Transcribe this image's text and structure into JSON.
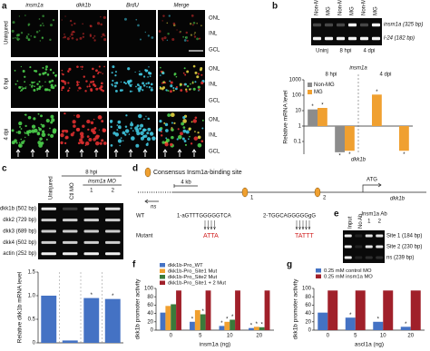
{
  "figure": {
    "a": {
      "label": "a",
      "columns": [
        "insm1a",
        "dkk1b",
        "BrdU",
        "Merge"
      ],
      "rows": [
        "Uninjured",
        "6 hpi",
        "4 dpi"
      ],
      "layers": [
        "ONL",
        "INL",
        "GCL"
      ]
    },
    "b": {
      "label": "b",
      "lanes": [
        "Non-MG",
        "MG",
        "Non-MG",
        "MG",
        "Non-MG",
        "MG"
      ],
      "groups": [
        "Uninj",
        "8 hpi",
        "4 dpi"
      ],
      "bands": [
        "insm1a (325 bp)",
        "l-24 (182 bp)"
      ]
    },
    "c": {
      "label": "c",
      "time": "8 hpi",
      "morpholino": "insm1a MO",
      "bands": [
        "dkk1b (502 bp)",
        "dkk2 (729 bp)",
        "dkk3 (689 bp)",
        "dkk4 (502 bp)",
        "actin (252 bp)"
      ]
    },
    "d": {
      "label": "d",
      "legend": "Consensus Insm1a-binding site",
      "scale": "4 kb",
      "start": "ATG",
      "gene": "dkk1b",
      "ns": "ns",
      "wt": "WT",
      "mutant": "Mutant",
      "site1": "1-aGTTTGGGGGTCA",
      "site2": "2-TGGCAGGGGGgG",
      "mut1": "ATTA",
      "mut2": "TATTT",
      "sites": [
        "1",
        "2"
      ]
    },
    "e": {
      "label": "e",
      "lanes": [
        "Input",
        "No Ab",
        "1",
        "2"
      ],
      "antibody": "Insm1a Ab",
      "bands": [
        "Site 1 (184 bp)",
        "Site 2 (230 bp)",
        "ns (239 bp)"
      ]
    },
    "f": {
      "label": "f"
    },
    "g": {
      "label": "g"
    }
  },
  "chart_data": [
    {
      "type": "bar",
      "log_scale": true,
      "ylabel": "Relative mRNA level",
      "groups": [
        "8 hpi",
        "4 dpi"
      ],
      "genes": [
        "insm1a",
        "dkk1b"
      ],
      "series": [
        {
          "name": "Non-MG",
          "color": "#8c8c8c",
          "values": [
            12,
            0.02,
            1.1,
            1
          ],
          "sig": [
            "*",
            "*",
            null,
            null
          ]
        },
        {
          "name": "MG",
          "color": "#f0a030",
          "values": [
            15,
            0.025,
            110,
            0.025
          ],
          "sig": [
            "*",
            "*",
            "*",
            "*"
          ]
        }
      ],
      "ylim": [
        0.015,
        1000
      ],
      "yticks": [
        0.1,
        1,
        10,
        100,
        1000
      ],
      "legend": "upper left"
    },
    {
      "type": "bar",
      "ylabel": "Relative dkk1b mRNA level",
      "categories": [
        "Uninjured",
        "Ctl MO",
        "1",
        "2"
      ],
      "values": [
        1,
        0.05,
        0.95,
        0.93
      ],
      "sig": [
        null,
        null,
        "*",
        "*"
      ],
      "color": "#4472c4",
      "ylim": [
        0,
        1.5
      ],
      "yticks": [
        0,
        0.5,
        {
          "value": 1,
          "label": "1.0"
        },
        1.5
      ]
    },
    {
      "type": "bar",
      "ylabel": "dkk1b promoter activity",
      "xlabel": "insm1a (ng)",
      "categories": [
        "0",
        "5",
        "10",
        "20"
      ],
      "series": [
        {
          "name": "dkk1b-Pro_WT",
          "color": "#4472c4",
          "values": [
            42,
            20,
            10,
            5
          ],
          "sig": [
            null,
            "*",
            "*",
            "*"
          ]
        },
        {
          "name": "dkk1b-Pro_Site1 Mut",
          "color": "#f0a030",
          "values": [
            58,
            48,
            20,
            8
          ],
          "sig": [
            null,
            null,
            "*",
            "*"
          ]
        },
        {
          "name": "dkk1b-Pro_Site2 Mut",
          "color": "#3a7a3a",
          "values": [
            62,
            38,
            25,
            7
          ],
          "sig": [
            null,
            "*",
            "*",
            "*"
          ]
        },
        {
          "name": "dkk1b-Pro_Site1 + 2 Mut",
          "color": "#a0202a",
          "values": [
            95,
            95,
            95,
            95
          ],
          "sig": [
            null,
            null,
            null,
            null
          ]
        }
      ],
      "ylim": [
        0,
        100
      ],
      "yticks": [
        0,
        20,
        40,
        60,
        80,
        100
      ],
      "legend": "upper left"
    },
    {
      "type": "bar",
      "ylabel": "dkk1b promoter activity",
      "xlabel": "ascl1a (ng)",
      "categories": [
        "0",
        "5",
        "10",
        "20"
      ],
      "series": [
        {
          "name": "0.25 mM control MO",
          "color": "#4472c4",
          "values": [
            42,
            30,
            20,
            8
          ],
          "sig": [
            null,
            "*",
            "*",
            "*"
          ]
        },
        {
          "name": "0.25 mM insm1a MO",
          "color": "#a0202a",
          "values": [
            95,
            95,
            95,
            95
          ],
          "sig": [
            null,
            null,
            null,
            null
          ]
        }
      ],
      "ylim": [
        0,
        100
      ],
      "yticks": [
        0,
        20,
        40,
        60,
        80,
        100
      ],
      "legend": "upper left"
    }
  ]
}
